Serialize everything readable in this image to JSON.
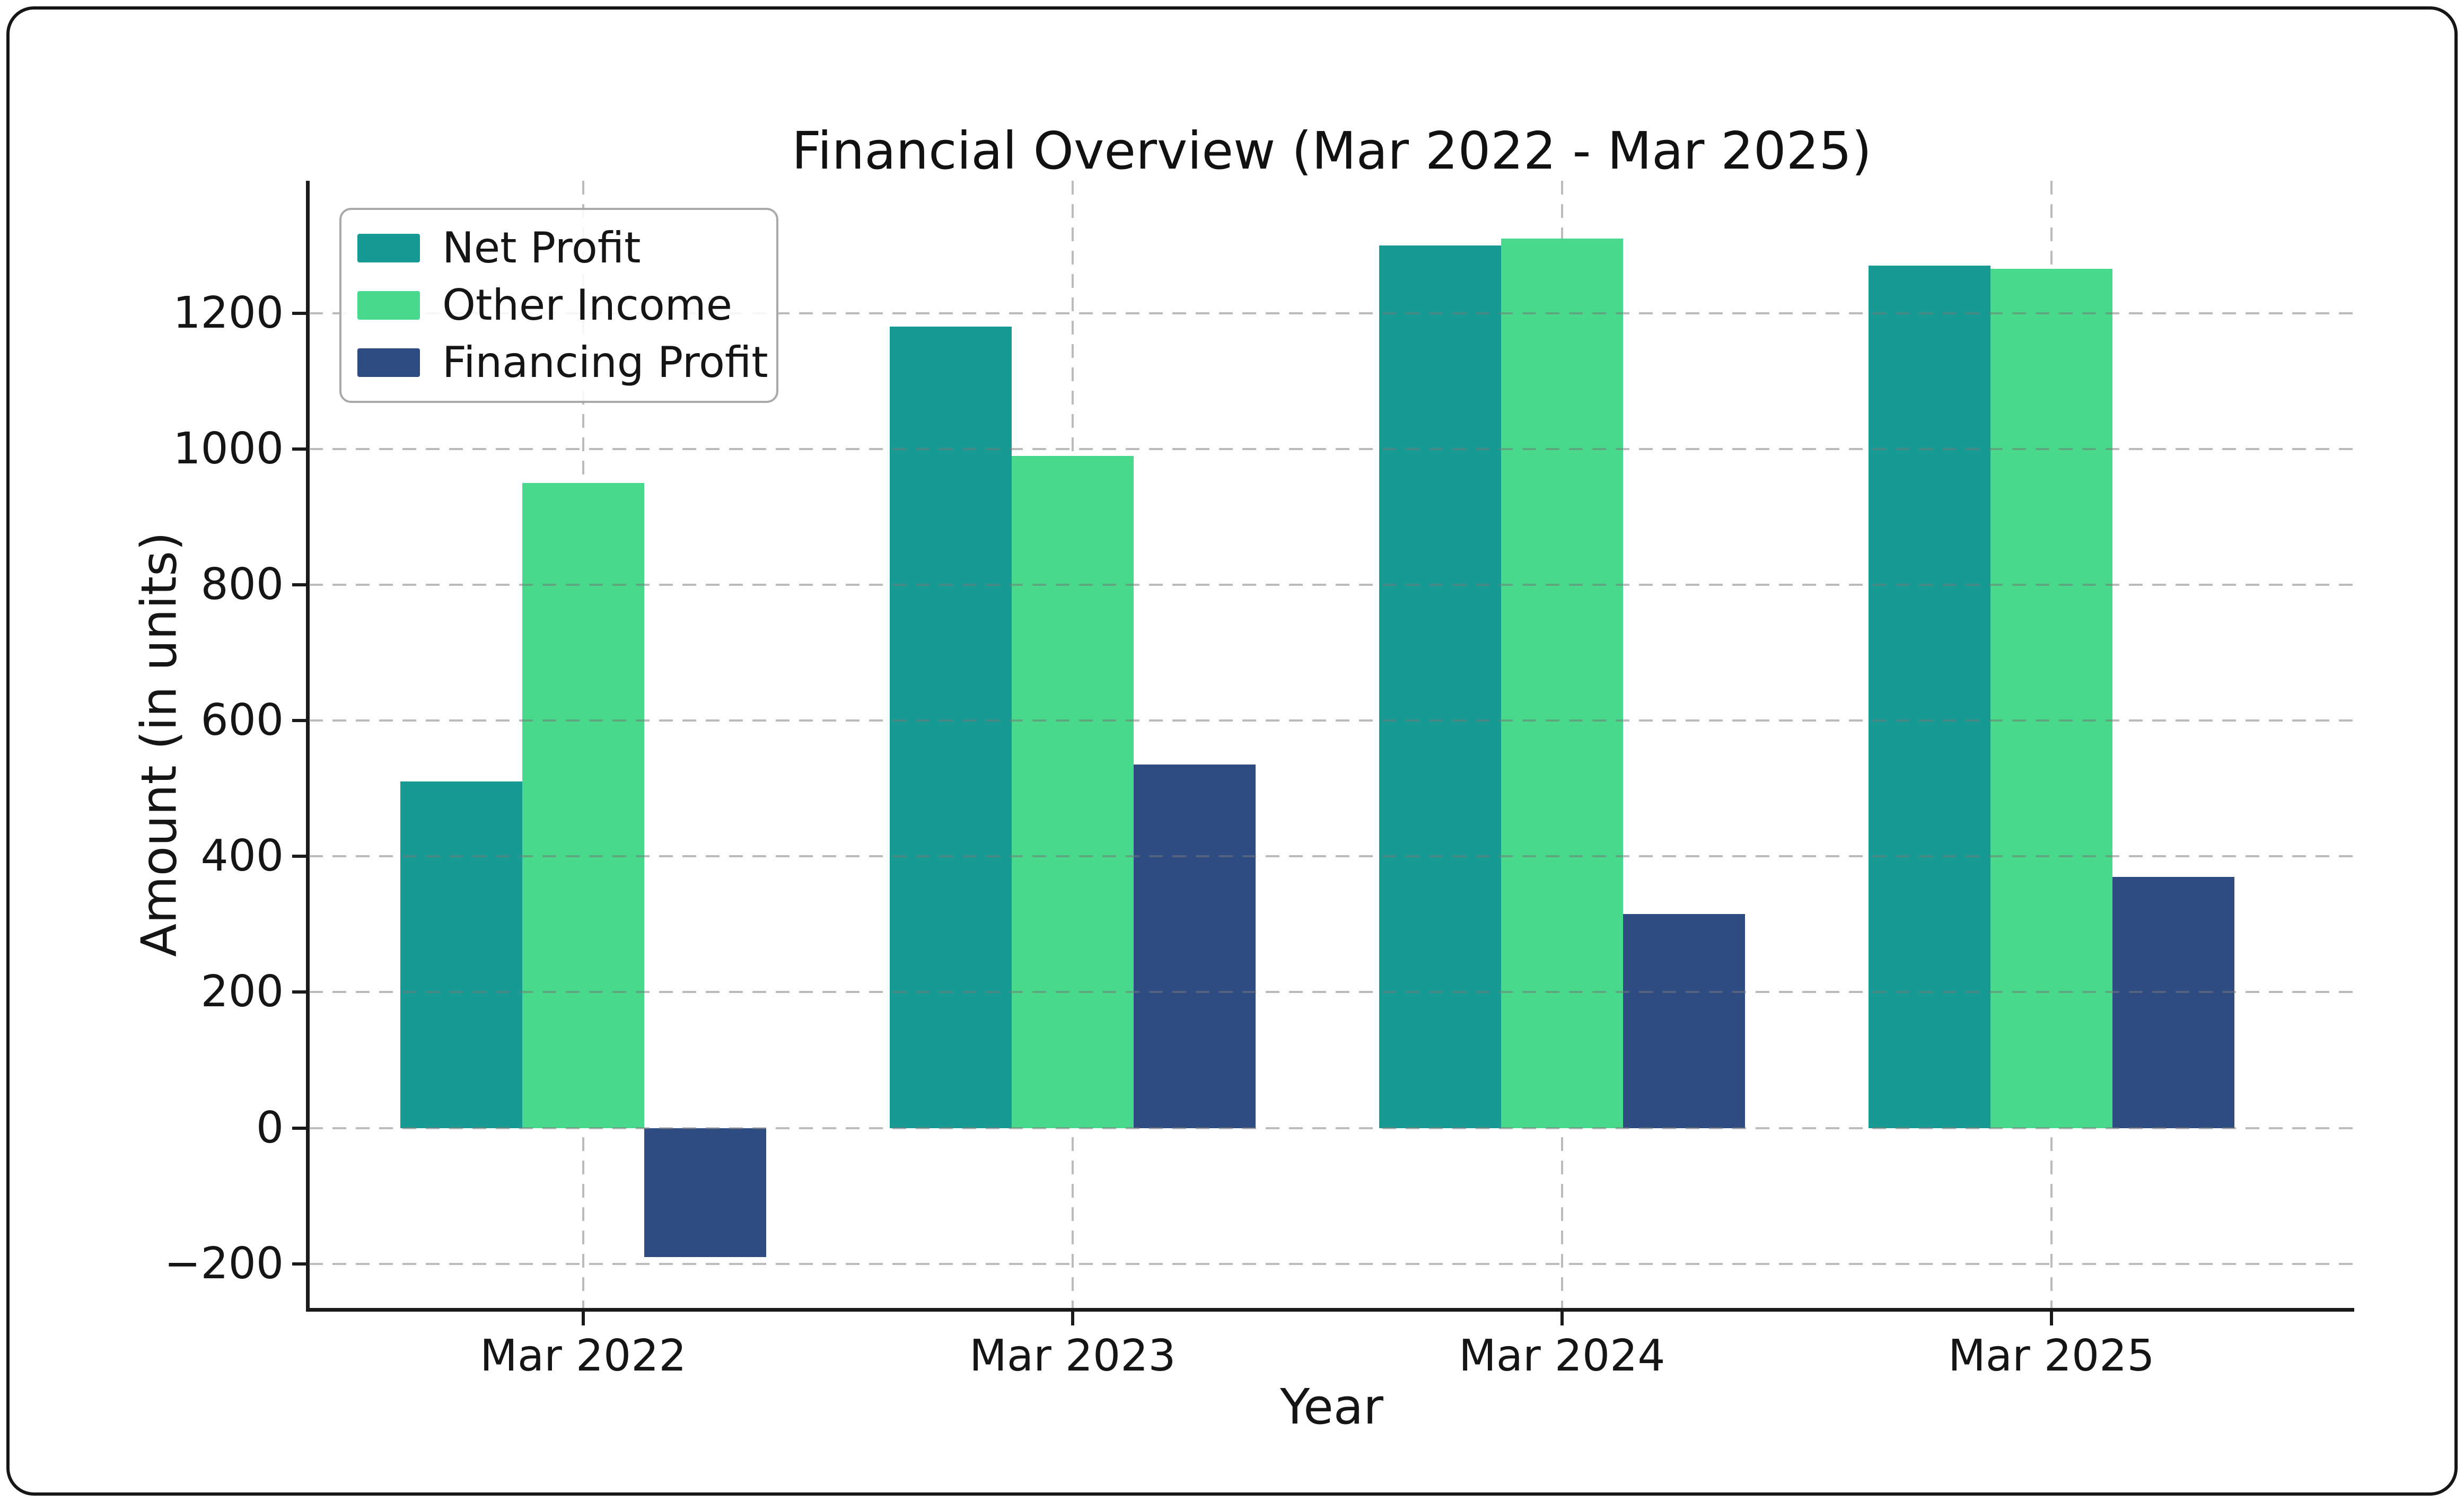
{
  "figure": {
    "background": "#ffffff",
    "border_color": "#161616"
  },
  "chart_data": {
    "type": "bar",
    "title": "Financial Overview (Mar 2022 - Mar 2025)",
    "xlabel": "Year",
    "ylabel": "Amount (in units)",
    "categories": [
      "Mar 2022",
      "Mar 2023",
      "Mar 2024",
      "Mar 2025"
    ],
    "series": [
      {
        "name": "Net Profit",
        "color": "#179a94",
        "values": [
          510,
          1180,
          1300,
          1270
        ]
      },
      {
        "name": "Other Income",
        "color": "#48d98c",
        "values": [
          950,
          990,
          1310,
          1265
        ]
      },
      {
        "name": "Financing Profit",
        "color": "#2e4b82",
        "values": [
          -190,
          535,
          315,
          370
        ]
      }
    ],
    "yticks": [
      -200,
      0,
      200,
      400,
      600,
      800,
      1000,
      1200
    ],
    "ylim": [
      -265,
      1395
    ],
    "grid": true,
    "grid_style": "dashed",
    "legend_position": "upper left"
  }
}
